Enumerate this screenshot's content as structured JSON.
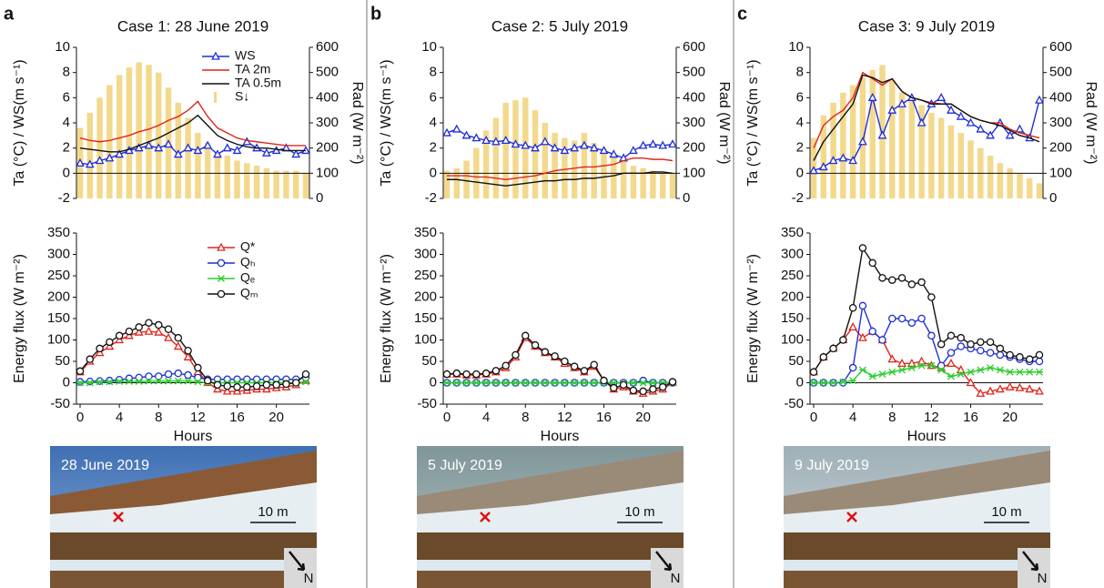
{
  "panels": [
    {
      "letter": "a",
      "photo_date": "28 June 2019",
      "scale": "10 m",
      "north": "N"
    },
    {
      "letter": "b",
      "photo_date": "5 July 2019",
      "scale": "10 m",
      "north": "N"
    },
    {
      "letter": "c",
      "photo_date": "9 July 2019",
      "scale": "10 m",
      "north": "N"
    }
  ],
  "chart_data": [
    {
      "type": "line",
      "title": "Case 1: 28 June 2019",
      "y_label": "Ta (°C) / WS(m s⁻¹)",
      "y2_label": "Rad (W m⁻²)",
      "x": [
        0,
        1,
        2,
        3,
        4,
        5,
        6,
        7,
        8,
        9,
        10,
        11,
        12,
        13,
        14,
        15,
        16,
        17,
        18,
        19,
        20,
        21,
        22,
        23
      ],
      "xlim": [
        0,
        23
      ],
      "ylim": [
        -2,
        10
      ],
      "yticks": [
        -2,
        0,
        2,
        4,
        6,
        8,
        10
      ],
      "y2lim": [
        0,
        600
      ],
      "y2ticks": [
        0,
        100,
        200,
        300,
        400,
        500,
        600
      ],
      "hline": 0,
      "legend": "top",
      "series": [
        {
          "name": "WS",
          "color": "#1f2ed6",
          "marker": "triangle",
          "values": [
            0.8,
            0.7,
            1,
            1.2,
            1.5,
            1.8,
            2,
            2.2,
            2,
            2.3,
            1.5,
            2,
            1.8,
            2.2,
            1.5,
            2,
            1.8,
            2.5,
            2,
            1.6,
            1.8,
            2,
            1.5,
            1.8
          ]
        },
        {
          "name": "TA 2m",
          "color": "#e0251b",
          "marker": "none",
          "values": [
            2.8,
            2.6,
            2.5,
            2.6,
            2.8,
            3,
            3.3,
            3.5,
            3.8,
            4.2,
            4.5,
            5,
            5.7,
            4.5,
            3.6,
            3.2,
            2.8,
            2.6,
            2.5,
            2.4,
            2.3,
            2.2,
            2.2,
            2.2
          ]
        },
        {
          "name": "TA 0.5m",
          "color": "#111111",
          "marker": "none",
          "values": [
            2,
            1.9,
            1.8,
            1.7,
            1.7,
            1.9,
            2.2,
            2.5,
            2.8,
            3.2,
            3.6,
            4,
            4.6,
            3.8,
            3,
            2.6,
            2.3,
            2.1,
            2,
            2,
            1.9,
            1.8,
            1.8,
            1.8
          ]
        },
        {
          "name": "S↓",
          "color": "#f3d98c",
          "type": "bar",
          "axis": "y2",
          "values": [
            280,
            340,
            400,
            450,
            490,
            520,
            540,
            530,
            500,
            440,
            380,
            320,
            260,
            220,
            180,
            170,
            150,
            140,
            130,
            120,
            110,
            110,
            110,
            100
          ]
        }
      ]
    },
    {
      "type": "line",
      "y_label": "Energy flux (W m⁻²)",
      "x_label": "Hours",
      "x": [
        0,
        1,
        2,
        3,
        4,
        5,
        6,
        7,
        8,
        9,
        10,
        11,
        12,
        13,
        14,
        15,
        16,
        17,
        18,
        19,
        20,
        21,
        22,
        23
      ],
      "xlim": [
        0,
        23
      ],
      "xticks": [
        0,
        4,
        8,
        12,
        16,
        20
      ],
      "ylim": [
        -50,
        350
      ],
      "yticks": [
        -50,
        0,
        50,
        100,
        150,
        200,
        250,
        300,
        350
      ],
      "hline": 0,
      "legend": "top",
      "series": [
        {
          "name": "Q*",
          "color": "#e0251b",
          "marker": "triangle",
          "values": [
            25,
            50,
            70,
            85,
            100,
            110,
            118,
            120,
            118,
            105,
            85,
            60,
            25,
            0,
            -15,
            -20,
            -20,
            -18,
            -15,
            -15,
            -12,
            -10,
            -5,
            5
          ]
        },
        {
          "name": "Qₕ",
          "color": "#1f2ed6",
          "marker": "circle",
          "values": [
            2,
            3,
            4,
            5,
            7,
            10,
            12,
            15,
            15,
            20,
            22,
            18,
            12,
            8,
            8,
            8,
            8,
            8,
            8,
            8,
            8,
            8,
            8,
            12
          ]
        },
        {
          "name": "Qₑ",
          "color": "#2ecc2e",
          "marker": "star",
          "values": [
            0,
            0,
            2,
            2,
            3,
            3,
            3,
            4,
            4,
            4,
            4,
            4,
            2,
            0,
            0,
            0,
            0,
            0,
            0,
            0,
            0,
            0,
            0,
            2
          ]
        },
        {
          "name": "Qₘ",
          "color": "#111111",
          "marker": "circle",
          "values": [
            27,
            55,
            80,
            95,
            110,
            120,
            130,
            140,
            135,
            125,
            105,
            75,
            35,
            5,
            -5,
            -8,
            -10,
            -10,
            -8,
            -5,
            -5,
            -3,
            0,
            20
          ]
        }
      ]
    },
    {
      "type": "line",
      "title": "Case 2: 5 July 2019",
      "y_label": "Ta (°C) / WS(m s⁻¹)",
      "y2_label": "Rad (W m⁻²)",
      "x": [
        0,
        1,
        2,
        3,
        4,
        5,
        6,
        7,
        8,
        9,
        10,
        11,
        12,
        13,
        14,
        15,
        16,
        17,
        18,
        19,
        20,
        21,
        22,
        23
      ],
      "xlim": [
        0,
        23
      ],
      "ylim": [
        -2,
        10
      ],
      "yticks": [
        -2,
        0,
        2,
        4,
        6,
        8,
        10
      ],
      "y2lim": [
        0,
        600
      ],
      "y2ticks": [
        0,
        100,
        200,
        300,
        400,
        500,
        600
      ],
      "hline": 0,
      "series": [
        {
          "name": "WS",
          "color": "#1f2ed6",
          "marker": "triangle",
          "values": [
            3.2,
            3.5,
            3,
            2.8,
            2.6,
            2.5,
            2.6,
            2.3,
            2.2,
            2,
            2.5,
            2,
            1.8,
            2,
            2.2,
            2,
            1.8,
            1.5,
            1.2,
            1.8,
            2.2,
            2.3,
            2.2,
            2.3
          ]
        },
        {
          "name": "TA 2m",
          "color": "#e0251b",
          "marker": "none",
          "values": [
            -0.2,
            -0.2,
            -0.2,
            -0.3,
            -0.3,
            -0.4,
            -0.5,
            -0.4,
            -0.3,
            -0.2,
            0,
            0.2,
            0.3,
            0.4,
            0.5,
            0.5,
            0.6,
            0.7,
            1,
            1.2,
            1.2,
            1.1,
            1.1,
            1
          ]
        },
        {
          "name": "TA 0.5m",
          "color": "#111111",
          "marker": "none",
          "values": [
            -0.5,
            -0.5,
            -0.6,
            -0.7,
            -0.8,
            -0.9,
            -1,
            -0.9,
            -0.8,
            -0.7,
            -0.6,
            -0.6,
            -0.5,
            -0.5,
            -0.4,
            -0.4,
            -0.3,
            -0.2,
            0,
            0,
            0,
            0.1,
            0.1,
            0
          ]
        },
        {
          "name": "S↓",
          "color": "#f3d98c",
          "type": "bar",
          "axis": "y2",
          "values": [
            110,
            120,
            150,
            200,
            270,
            320,
            380,
            390,
            400,
            350,
            300,
            260,
            240,
            230,
            260,
            220,
            200,
            180,
            150,
            130,
            120,
            110,
            100,
            100
          ]
        }
      ]
    },
    {
      "type": "line",
      "y_label": "Energy flux (W m⁻²)",
      "x_label": "Hours",
      "x": [
        0,
        1,
        2,
        3,
        4,
        5,
        6,
        7,
        8,
        9,
        10,
        11,
        12,
        13,
        14,
        15,
        16,
        17,
        18,
        19,
        20,
        21,
        22,
        23
      ],
      "xlim": [
        0,
        23
      ],
      "xticks": [
        0,
        4,
        8,
        12,
        16,
        20
      ],
      "ylim": [
        -50,
        350
      ],
      "yticks": [
        -50,
        0,
        50,
        100,
        150,
        200,
        250,
        300,
        350
      ],
      "hline": 0,
      "series": [
        {
          "name": "Q*",
          "color": "#e0251b",
          "marker": "triangle",
          "values": [
            20,
            20,
            18,
            18,
            20,
            25,
            35,
            60,
            105,
            85,
            70,
            60,
            45,
            35,
            25,
            38,
            5,
            -15,
            -10,
            -20,
            -25,
            -20,
            -15,
            0
          ]
        },
        {
          "name": "Qₕ",
          "color": "#1f2ed6",
          "marker": "circle",
          "values": [
            0,
            0,
            0,
            0,
            0,
            0,
            0,
            0,
            0,
            0,
            0,
            0,
            0,
            0,
            0,
            0,
            0,
            0,
            0,
            0,
            5,
            0,
            0,
            0
          ]
        },
        {
          "name": "Qₑ",
          "color": "#2ecc2e",
          "marker": "star",
          "values": [
            0,
            0,
            0,
            0,
            0,
            0,
            0,
            0,
            0,
            0,
            0,
            0,
            0,
            0,
            0,
            0,
            0,
            0,
            0,
            0,
            0,
            0,
            0,
            0
          ]
        },
        {
          "name": "Qₘ",
          "color": "#111111",
          "marker": "circle",
          "values": [
            20,
            22,
            20,
            20,
            22,
            28,
            40,
            65,
            110,
            88,
            72,
            62,
            50,
            38,
            28,
            42,
            5,
            -12,
            -5,
            -18,
            -20,
            -15,
            -10,
            2
          ]
        }
      ]
    },
    {
      "type": "line",
      "title": "Case 3: 9 July 2019",
      "y_label": "Ta (°C) / WS(m s⁻¹)",
      "y2_label": "Rad (W m⁻²)",
      "x": [
        0,
        1,
        2,
        3,
        4,
        5,
        6,
        7,
        8,
        9,
        10,
        11,
        12,
        13,
        14,
        15,
        16,
        17,
        18,
        19,
        20,
        21,
        22,
        23
      ],
      "xlim": [
        0,
        23
      ],
      "ylim": [
        -2,
        10
      ],
      "yticks": [
        -2,
        0,
        2,
        4,
        6,
        8,
        10
      ],
      "y2lim": [
        0,
        600
      ],
      "y2ticks": [
        0,
        100,
        200,
        300,
        400,
        500,
        600
      ],
      "hline": 0,
      "series": [
        {
          "name": "WS",
          "color": "#1f2ed6",
          "marker": "triangle",
          "values": [
            0.2,
            0.5,
            1,
            1.2,
            1,
            2.5,
            6,
            3,
            5,
            5.5,
            6,
            4,
            5.5,
            6,
            5,
            4.5,
            4,
            3.5,
            3,
            4,
            3,
            3.5,
            2.8,
            5.8
          ]
        },
        {
          "name": "TA 2m",
          "color": "#e0251b",
          "marker": "none",
          "values": [
            2,
            3.8,
            4.5,
            5,
            6,
            8,
            7.5,
            7,
            7.5,
            6.5,
            6,
            5.8,
            5.6,
            5.5,
            5.5,
            5,
            4.5,
            4.2,
            4,
            4,
            3.5,
            3.2,
            3,
            2.8
          ]
        },
        {
          "name": "TA 0.5m",
          "color": "#111111",
          "marker": "none",
          "values": [
            1,
            2.5,
            3.5,
            4.5,
            5.5,
            7.8,
            7.6,
            7.2,
            7.5,
            6.5,
            6,
            5.8,
            5.5,
            5.5,
            5.5,
            5,
            4.5,
            4.2,
            4,
            3.8,
            3.4,
            3,
            2.8,
            2.5
          ]
        },
        {
          "name": "S↓",
          "color": "#f3d98c",
          "type": "bar",
          "axis": "y2",
          "values": [
            240,
            330,
            380,
            420,
            450,
            480,
            510,
            530,
            470,
            420,
            400,
            370,
            340,
            320,
            290,
            260,
            230,
            200,
            170,
            140,
            120,
            100,
            80,
            60
          ]
        }
      ]
    },
    {
      "type": "line",
      "y_label": "Energy flux (W m⁻²)",
      "x_label": "Hours",
      "x": [
        0,
        1,
        2,
        3,
        4,
        5,
        6,
        7,
        8,
        9,
        10,
        11,
        12,
        13,
        14,
        15,
        16,
        17,
        18,
        19,
        20,
        21,
        22,
        23
      ],
      "xlim": [
        0,
        23
      ],
      "xticks": [
        0,
        4,
        8,
        12,
        16,
        20
      ],
      "ylim": [
        -50,
        350
      ],
      "yticks": [
        -50,
        0,
        50,
        100,
        150,
        200,
        250,
        300,
        350
      ],
      "hline": 0,
      "series": [
        {
          "name": "Q*",
          "color": "#e0251b",
          "marker": "triangle",
          "values": [
            25,
            60,
            80,
            100,
            130,
            105,
            120,
            100,
            55,
            45,
            45,
            50,
            40,
            35,
            45,
            30,
            0,
            -25,
            -20,
            -15,
            -10,
            -12,
            -15,
            -20
          ]
        },
        {
          "name": "Qₕ",
          "color": "#1f2ed6",
          "marker": "circle",
          "values": [
            0,
            0,
            0,
            0,
            35,
            180,
            120,
            100,
            150,
            150,
            140,
            150,
            110,
            40,
            70,
            85,
            80,
            75,
            70,
            65,
            60,
            55,
            50,
            50
          ]
        },
        {
          "name": "Qₑ",
          "color": "#2ecc2e",
          "marker": "star",
          "values": [
            0,
            0,
            0,
            2,
            5,
            30,
            15,
            20,
            25,
            30,
            35,
            40,
            40,
            30,
            15,
            20,
            25,
            30,
            35,
            30,
            25,
            25,
            25,
            25
          ]
        },
        {
          "name": "Qₘ",
          "color": "#111111",
          "marker": "circle",
          "values": [
            25,
            60,
            80,
            100,
            175,
            315,
            280,
            245,
            240,
            245,
            230,
            235,
            200,
            90,
            110,
            105,
            90,
            95,
            95,
            80,
            65,
            60,
            55,
            65
          ]
        }
      ]
    }
  ]
}
